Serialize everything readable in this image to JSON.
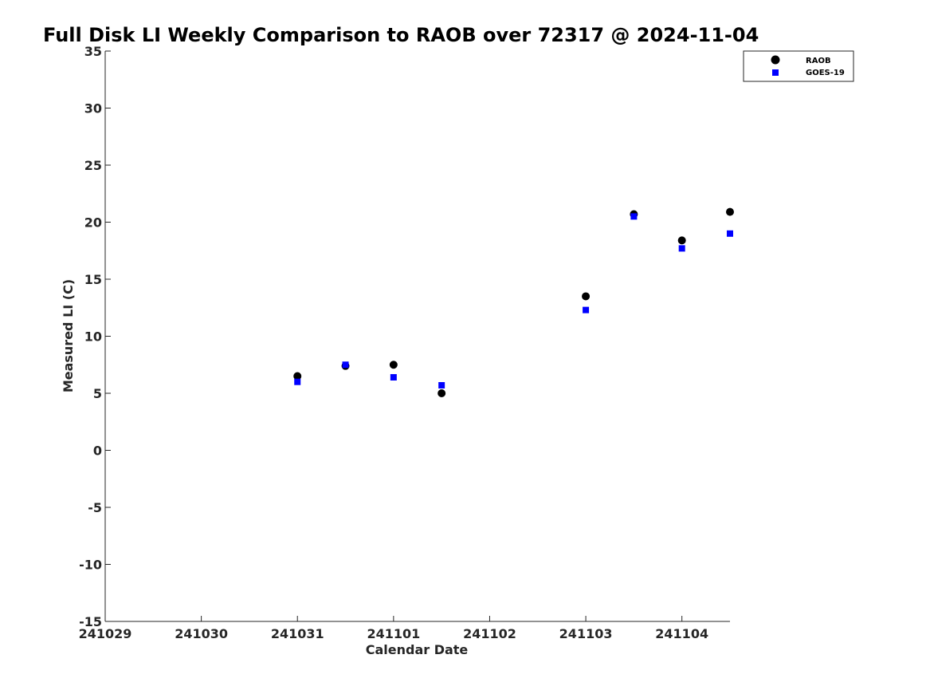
{
  "chart_data": {
    "type": "scatter",
    "title": "Full Disk LI Weekly Comparison to RAOB over 72317 @ 2024-11-04",
    "xlabel": "Calendar Date",
    "ylabel": "Measured LI (C)",
    "x_ticks": [
      "241029",
      "241030",
      "241031",
      "241101",
      "241102",
      "241103",
      "241104"
    ],
    "xlim": [
      "2024-10-29T00:00",
      "2024-11-04T12:00"
    ],
    "y_ticks": [
      "35",
      "30",
      "25",
      "20",
      "15",
      "10",
      "5",
      "0",
      "-5",
      "-10",
      "-15"
    ],
    "ylim": [
      -15,
      35
    ],
    "grid": false,
    "legend_position": "top-right",
    "series": [
      {
        "name": "RAOB",
        "marker": "circle",
        "color": "#000000",
        "points": [
          {
            "x": "2024-10-31T00:00",
            "y": 6.5
          },
          {
            "x": "2024-10-31T12:00",
            "y": 7.4
          },
          {
            "x": "2024-11-01T00:00",
            "y": 7.5
          },
          {
            "x": "2024-11-01T12:00",
            "y": 5.0
          },
          {
            "x": "2024-11-03T00:00",
            "y": 13.5
          },
          {
            "x": "2024-11-03T12:00",
            "y": 20.7
          },
          {
            "x": "2024-11-04T00:00",
            "y": 18.4
          },
          {
            "x": "2024-11-04T12:00",
            "y": 20.9
          }
        ]
      },
      {
        "name": "GOES-19",
        "marker": "square",
        "color": "#0000ff",
        "points": [
          {
            "x": "2024-10-31T00:00",
            "y": 6.0
          },
          {
            "x": "2024-10-31T12:00",
            "y": 7.5
          },
          {
            "x": "2024-11-01T00:00",
            "y": 6.4
          },
          {
            "x": "2024-11-01T12:00",
            "y": 5.7
          },
          {
            "x": "2024-11-03T00:00",
            "y": 12.3
          },
          {
            "x": "2024-11-03T12:00",
            "y": 20.5
          },
          {
            "x": "2024-11-04T00:00",
            "y": 17.7
          },
          {
            "x": "2024-11-04T12:00",
            "y": 19.0
          }
        ]
      }
    ]
  }
}
